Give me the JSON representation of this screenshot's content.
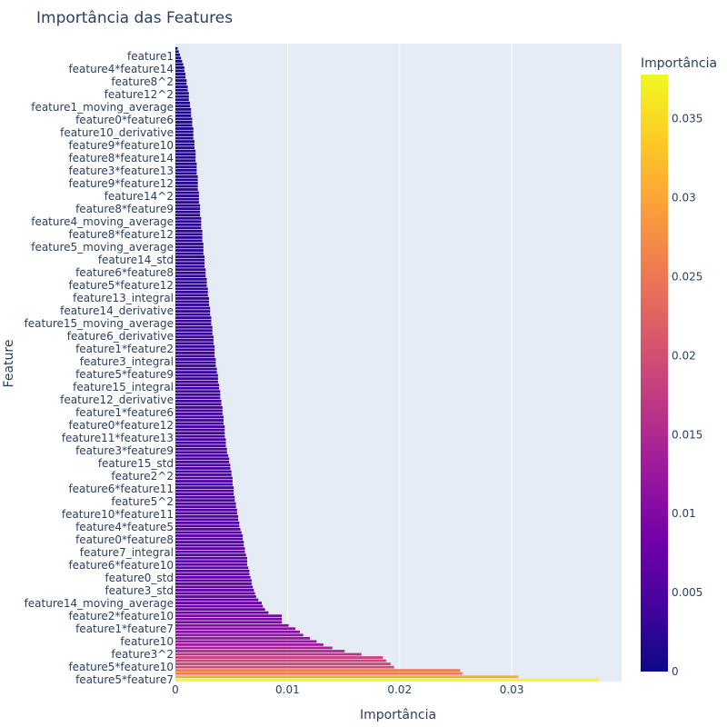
{
  "chart_data": {
    "type": "bar",
    "orientation": "horizontal",
    "title": "Importância das Features",
    "xlabel": "Importância",
    "ylabel": "Feature",
    "xlim": [
      0,
      0.0398
    ],
    "x_ticks": [
      0,
      0.01,
      0.02,
      0.03
    ],
    "x_tick_labels": [
      "0",
      "0.01",
      "0.02",
      "0.03"
    ],
    "grid": true,
    "colorscale": [
      "#0d0887",
      "#46039f",
      "#7201a8",
      "#9c179e",
      "#bd3786",
      "#d8576b",
      "#ed7953",
      "#fb9f3a",
      "#fdca26",
      "#f0f921"
    ],
    "colorbar": {
      "title": "Importância",
      "range": [
        0,
        0.0378
      ],
      "ticks": [
        0,
        0.005,
        0.01,
        0.015,
        0.02,
        0.025,
        0.03,
        0.035
      ],
      "tick_labels": [
        "0",
        "0.005",
        "0.01",
        "0.015",
        "0.02",
        "0.025",
        "0.03",
        "0.035"
      ]
    },
    "tick_labels_shown": [
      "feature1",
      "feature4*feature14",
      "feature8^2",
      "feature12^2",
      "feature1_moving_average",
      "feature0*feature6",
      "feature10_derivative",
      "feature9*feature10",
      "feature8*feature14",
      "feature3*feature13",
      "feature9*feature12",
      "feature14^2",
      "feature8*feature9",
      "feature4_moving_average",
      "feature8*feature12",
      "feature5_moving_average",
      "feature14_std",
      "feature6*feature8",
      "feature5*feature12",
      "feature13_integral",
      "feature14_derivative",
      "feature15_moving_average",
      "feature6_derivative",
      "feature1*feature2",
      "feature3_integral",
      "feature5*feature9",
      "feature15_integral",
      "feature12_derivative",
      "feature1*feature6",
      "feature0*feature12",
      "feature11*feature13",
      "feature3*feature9",
      "feature15_std",
      "feature2^2",
      "feature6*feature11",
      "feature5^2",
      "feature10*feature11",
      "feature4*feature5",
      "feature0*feature8",
      "feature7_integral",
      "feature6*feature10",
      "feature0_std",
      "feature3_std",
      "feature14_moving_average",
      "feature2*feature10",
      "feature1*feature7",
      "feature10",
      "feature3^2",
      "feature5*feature10",
      "feature5*feature7"
    ],
    "values": [
      0.0378,
      0.0306,
      0.0256,
      0.0254,
      0.0195,
      0.0192,
      0.0188,
      0.0185,
      0.0166,
      0.0151,
      0.014,
      0.0132,
      0.0126,
      0.012,
      0.0114,
      0.0111,
      0.0107,
      0.0101,
      0.0095,
      0.0095,
      0.0095,
      0.0083,
      0.008,
      0.0078,
      0.0077,
      0.0074,
      0.0072,
      0.0071,
      0.007,
      0.0069,
      0.0068,
      0.0068,
      0.0067,
      0.0066,
      0.0066,
      0.0065,
      0.0064,
      0.0064,
      0.0064,
      0.0063,
      0.0062,
      0.0062,
      0.0061,
      0.0061,
      0.006,
      0.006,
      0.0059,
      0.0058,
      0.0057,
      0.0057,
      0.0056,
      0.0056,
      0.0055,
      0.0055,
      0.0054,
      0.0054,
      0.0053,
      0.0053,
      0.0052,
      0.0052,
      0.0052,
      0.0051,
      0.0051,
      0.0051,
      0.005,
      0.005,
      0.0049,
      0.0049,
      0.0048,
      0.0048,
      0.0047,
      0.0046,
      0.0046,
      0.0045,
      0.0045,
      0.0045,
      0.0044,
      0.0044,
      0.0044,
      0.0044,
      0.0043,
      0.0043,
      0.0043,
      0.0042,
      0.0042,
      0.0042,
      0.0041,
      0.0041,
      0.004,
      0.004,
      0.004,
      0.0039,
      0.0039,
      0.0038,
      0.0038,
      0.0038,
      0.0037,
      0.0037,
      0.0036,
      0.0036,
      0.0036,
      0.0035,
      0.0035,
      0.0035,
      0.0035,
      0.0034,
      0.0034,
      0.0034,
      0.0033,
      0.0033,
      0.0033,
      0.0032,
      0.0032,
      0.0032,
      0.0031,
      0.0031,
      0.0031,
      0.003,
      0.003,
      0.003,
      0.0029,
      0.0029,
      0.0029,
      0.0028,
      0.0028,
      0.0028,
      0.0027,
      0.0027,
      0.0027,
      0.0026,
      0.0026,
      0.0026,
      0.0026,
      0.0025,
      0.0025,
      0.0025,
      0.0025,
      0.0024,
      0.0024,
      0.0024,
      0.0024,
      0.0023,
      0.0023,
      0.0023,
      0.0023,
      0.0022,
      0.0022,
      0.0022,
      0.0022,
      0.0021,
      0.0021,
      0.0021,
      0.0021,
      0.002,
      0.002,
      0.002,
      0.002,
      0.002,
      0.0019,
      0.0019,
      0.0019,
      0.0019,
      0.0018,
      0.0018,
      0.0018,
      0.0018,
      0.0017,
      0.0017,
      0.0017,
      0.0016,
      0.0016,
      0.0016,
      0.0016,
      0.0015,
      0.0015,
      0.0015,
      0.0014,
      0.0014,
      0.0014,
      0.0013,
      0.0013,
      0.0012,
      0.0012,
      0.0012,
      0.0011,
      0.0011,
      0.001,
      0.001,
      0.0009,
      0.0009,
      0.0008,
      0.0008,
      0.0007,
      0.0006,
      0.0005,
      0.0004,
      0.0003,
      0.0002,
      0.0
    ]
  }
}
